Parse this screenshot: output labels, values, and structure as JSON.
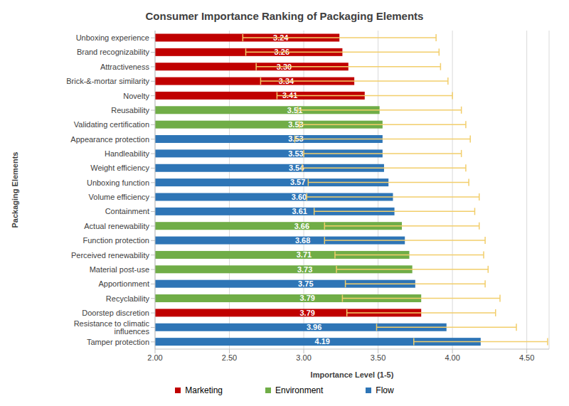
{
  "chart_data": {
    "type": "bar",
    "title": "Consumer Importance Ranking of Packaging Elements",
    "orientation": "horizontal",
    "x_label": "Importance Level (1-5)",
    "y_label": "Packaging Elements",
    "categories": [
      "Unboxing experience",
      "Brand recognizability",
      "Attractiveness",
      "Brick-&-mortar similarity",
      "Novelty",
      "Reusability",
      "Validating certification",
      "Appearance protection",
      "Handleability",
      "Weight efficiency",
      "Unboxing function",
      "Volume efficiency",
      "Containment",
      "Actual renewability",
      "Function protection",
      "Perceived renewability",
      "Material post-use",
      "Apportionment",
      "Recyclability",
      "Doorstep discretion",
      "Resistance to climatic influences",
      "Tamper protection"
    ],
    "series": [
      {
        "name": "Marketing",
        "color": "#c00000",
        "values": [
          3.24,
          3.26,
          3.3,
          3.34,
          3.41,
          null,
          null,
          null,
          null,
          null,
          null,
          null,
          null,
          null,
          null,
          null,
          null,
          null,
          null,
          3.79,
          null,
          null
        ],
        "value_labels": [
          "3.24",
          "3.26",
          "3.30",
          "3.34",
          "3.41",
          null,
          null,
          null,
          null,
          null,
          null,
          null,
          null,
          null,
          null,
          null,
          null,
          null,
          null,
          "3.79",
          null,
          null
        ],
        "errors": [
          0.65,
          0.65,
          0.62,
          0.63,
          0.59,
          null,
          null,
          null,
          null,
          null,
          null,
          null,
          null,
          null,
          null,
          null,
          null,
          null,
          null,
          0.5,
          null,
          null
        ]
      },
      {
        "name": "Environment",
        "color": "#70ad47",
        "values": [
          null,
          null,
          null,
          null,
          null,
          3.51,
          3.53,
          null,
          null,
          null,
          null,
          null,
          null,
          3.66,
          null,
          3.71,
          3.73,
          null,
          3.79,
          null,
          null,
          null
        ],
        "value_labels": [
          null,
          null,
          null,
          null,
          null,
          "3.51",
          "3.53",
          null,
          null,
          null,
          null,
          null,
          null,
          "3.66",
          null,
          "3.71",
          "3.73",
          null,
          "3.79",
          null,
          null,
          null
        ],
        "errors": [
          null,
          null,
          null,
          null,
          null,
          0.55,
          0.56,
          null,
          null,
          null,
          null,
          null,
          null,
          0.52,
          null,
          0.5,
          0.51,
          null,
          0.53,
          null,
          null,
          null
        ]
      },
      {
        "name": "Flow",
        "color": "#2e75b6",
        "values": [
          null,
          null,
          null,
          null,
          null,
          null,
          null,
          3.53,
          3.53,
          3.54,
          3.57,
          3.6,
          3.61,
          null,
          3.68,
          null,
          null,
          3.75,
          null,
          null,
          3.96,
          4.19
        ],
        "value_labels": [
          null,
          null,
          null,
          null,
          null,
          null,
          null,
          "3.53",
          "3.53",
          "3.54",
          "3.57",
          "3.60",
          "3.61",
          null,
          "3.68",
          null,
          null,
          "3.75",
          null,
          null,
          "3.96",
          "4.19"
        ],
        "errors": [
          null,
          null,
          null,
          null,
          null,
          null,
          null,
          0.59,
          0.53,
          0.55,
          0.54,
          0.58,
          0.54,
          null,
          0.54,
          null,
          null,
          0.47,
          null,
          null,
          0.47,
          0.45
        ]
      }
    ],
    "xlim": [
      2,
      4.65
    ],
    "xticks": [
      {
        "value": 2,
        "label": "2.00"
      },
      {
        "value": 2.5,
        "label": "2.50"
      },
      {
        "value": 3,
        "label": "3.00"
      },
      {
        "value": 3.5,
        "label": "3.50"
      },
      {
        "value": 4,
        "label": "4.00"
      },
      {
        "value": 4.5,
        "label": "4.50"
      }
    ],
    "grid": true,
    "legend": "bottom",
    "data_labels": true
  }
}
